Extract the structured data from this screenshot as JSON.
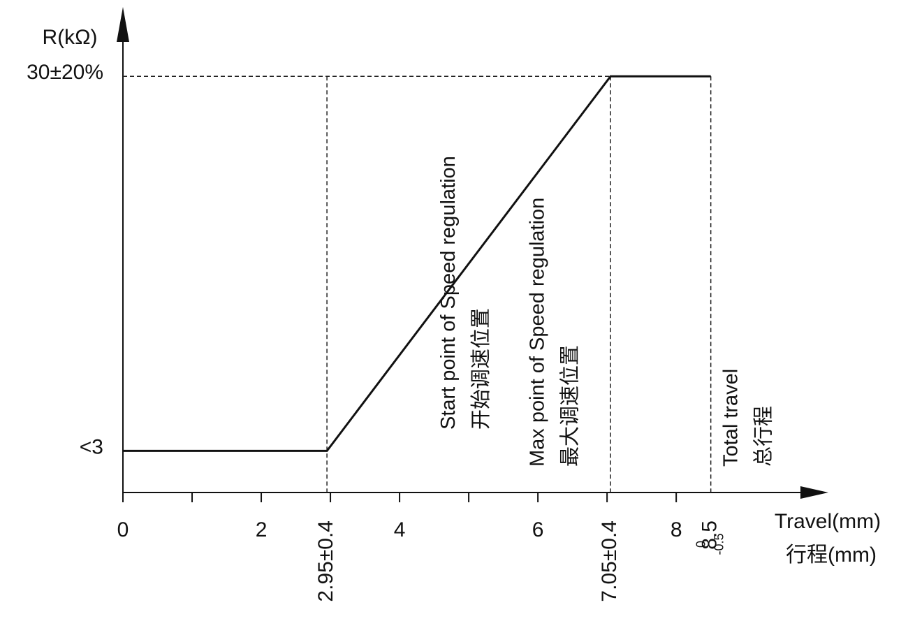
{
  "chart_data": {
    "type": "line",
    "y_label": "R(kΩ)",
    "x_label": "Travel(mm)",
    "x_label_cn": "行程(mm)",
    "xlim": [
      0,
      10.2
    ],
    "ylim": [
      0,
      35
    ],
    "xticks": [
      0,
      2,
      4,
      6,
      8
    ],
    "minor_xticks": [
      1,
      3,
      5,
      7
    ],
    "yticks": [
      {
        "value": 30,
        "label": "30±20%"
      },
      {
        "value": 3,
        "label": "<3"
      }
    ],
    "series": [
      {
        "x": [
          0,
          2.95,
          7.05,
          8.5
        ],
        "values": [
          3,
          3,
          30,
          30
        ],
        "color": "#111111"
      }
    ],
    "markers": [
      {
        "x": 2.95,
        "label": "2.95±0.4",
        "text": "Start point of Speed regulation",
        "text_cn": "开始调速位置"
      },
      {
        "x": 7.05,
        "label": "7.05±0.4",
        "text": "Max point of Speed regulation",
        "text_cn": "最大调速位置"
      },
      {
        "x": 8.5,
        "label": "8.5",
        "tol_upper": "0",
        "tol_lower": "-0.5",
        "text": "Total travel",
        "text_cn": "总行程"
      }
    ]
  }
}
